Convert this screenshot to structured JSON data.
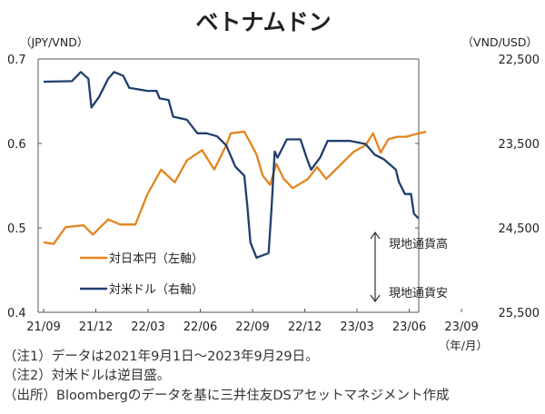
{
  "chart_data": {
    "type": "line",
    "title": "ベトナムドン",
    "x_unit_note": "months since 21/09",
    "xlabel": "（年/月）",
    "x_ticks": [
      "21/09",
      "21/12",
      "22/03",
      "22/06",
      "22/09",
      "22/12",
      "23/03",
      "23/06",
      "23/09"
    ],
    "xlim": [
      0,
      24.9
    ],
    "left_axis": {
      "label": "（JPY/VND）",
      "ylim": [
        0.4,
        0.7
      ],
      "ticks": [
        "0.4",
        "0.5",
        "0.6",
        "0.7"
      ],
      "tick_values": [
        0.4,
        0.5,
        0.6,
        0.7
      ]
    },
    "right_axis": {
      "label": "（VND/USD）",
      "ylim": [
        22500,
        25500
      ],
      "inverted": true,
      "ticks": [
        "22,500",
        "23,500",
        "24,500",
        "25,500"
      ],
      "tick_values": [
        22500,
        23500,
        24500,
        25500
      ]
    },
    "series": [
      {
        "name": "対日本円（左軸）",
        "axis": "left",
        "color": "#E3841E",
        "x": [
          0,
          0.57,
          1.27,
          2.3,
          2.83,
          3.71,
          4.4,
          5.27,
          5.97,
          6.75,
          7.53,
          8.23,
          9.1,
          9.8,
          10.49,
          10.75,
          11.53,
          12.23,
          12.58,
          13.01,
          13.36,
          13.8,
          14.31,
          15.18,
          15.7,
          16.23,
          16.92,
          17.8,
          18.49,
          18.92,
          19.36,
          19.8,
          20.31,
          20.83,
          21.35,
          21.97
        ],
        "values": [
          0.483,
          0.481,
          0.501,
          0.503,
          0.492,
          0.51,
          0.504,
          0.504,
          0.54,
          0.569,
          0.554,
          0.58,
          0.592,
          0.569,
          0.598,
          0.612,
          0.614,
          0.587,
          0.562,
          0.551,
          0.576,
          0.558,
          0.547,
          0.558,
          0.572,
          0.558,
          0.572,
          0.59,
          0.598,
          0.612,
          0.589,
          0.605,
          0.608,
          0.608,
          0.611,
          0.614
        ]
      },
      {
        "name": "対米ドル（右軸）",
        "axis": "right",
        "color": "#1F3F6E",
        "x": [
          0,
          1.62,
          2.14,
          2.57,
          2.75,
          3.18,
          3.71,
          4.05,
          4.57,
          4.92,
          5.97,
          6.49,
          6.66,
          7.18,
          7.44,
          8.23,
          8.83,
          9.36,
          9.97,
          10.49,
          11.01,
          11.53,
          11.7,
          11.88,
          12.23,
          12.92,
          13.1,
          13.27,
          13.44,
          13.97,
          14.75,
          15.1,
          15.36,
          15.88,
          16.31,
          16.92,
          17.62,
          18.49,
          19.01,
          19.53,
          20.23,
          20.4,
          20.75,
          21.1,
          21.27,
          21.53
        ],
        "values": [
          22769,
          22762,
          22654,
          22733,
          23075,
          22949,
          22733,
          22654,
          22698,
          22841,
          22877,
          22877,
          22967,
          22985,
          23183,
          23219,
          23380,
          23380,
          23416,
          23524,
          23775,
          23883,
          24242,
          24673,
          24853,
          24799,
          24242,
          23596,
          23668,
          23452,
          23452,
          23668,
          23811,
          23668,
          23470,
          23470,
          23470,
          23506,
          23632,
          23686,
          23811,
          23955,
          24099,
          24099,
          24332,
          24386
        ]
      }
    ],
    "legend_position": "lower-left (inside plot)",
    "annotations": {
      "up": "現地通貨高",
      "down": "現地通貨安"
    }
  },
  "notes": [
    "（注1）データは2021年9月1日～2023年9月29日。",
    "（注2）対米ドルは逆目盛。",
    "（出所）Bloombergのデータを基に三井住友DSアセットマネジメント作成"
  ]
}
